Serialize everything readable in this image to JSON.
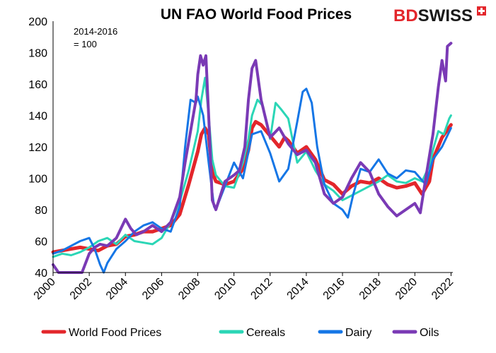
{
  "brand": {
    "part1": "BD",
    "part2": "SWISS",
    "color": "#e3262b"
  },
  "chart_data": {
    "type": "line",
    "title": "UN FAO World Food Prices",
    "note": [
      "2014-2016",
      "= 100"
    ],
    "xlabel": "",
    "ylabel": "",
    "xlim": [
      2000,
      2022.1
    ],
    "ylim": [
      40,
      200
    ],
    "y_ticks": [
      40,
      60,
      80,
      100,
      120,
      140,
      160,
      180,
      200
    ],
    "x_ticks": [
      2000,
      2002,
      2004,
      2006,
      2008,
      2010,
      2012,
      2014,
      2016,
      2018,
      2020,
      2022
    ],
    "grid": false,
    "legend_position": "bottom",
    "series": [
      {
        "name": "World Food Prices",
        "color": "#e3262b",
        "width": 5,
        "x": [
          2000,
          2000.5,
          2001,
          2001.5,
          2002,
          2002.5,
          2003,
          2003.5,
          2004,
          2004.5,
          2005,
          2005.5,
          2006,
          2006.5,
          2007,
          2007.5,
          2008,
          2008.2,
          2008.4,
          2008.6,
          2008.8,
          2009,
          2009.5,
          2010,
          2010.5,
          2010.8,
          2011,
          2011.2,
          2011.5,
          2012,
          2012.5,
          2012.8,
          2013,
          2013.5,
          2014,
          2014.5,
          2015,
          2015.5,
          2016,
          2016.5,
          2017,
          2017.5,
          2018,
          2018.5,
          2019,
          2019.5,
          2020,
          2020.4,
          2020.8,
          2021,
          2021.5,
          2022
        ],
        "y": [
          53,
          54,
          55,
          56,
          55,
          54,
          57,
          58,
          63,
          64,
          66,
          66,
          68,
          70,
          77,
          96,
          117,
          128,
          132,
          128,
          104,
          98,
          96,
          98,
          106,
          118,
          132,
          136,
          134,
          127,
          120,
          126,
          124,
          116,
          120,
          112,
          99,
          96,
          90,
          95,
          98,
          97,
          100,
          96,
          94,
          95,
          97,
          90,
          98,
          112,
          126,
          134
        ]
      },
      {
        "name": "Cereals",
        "color": "#2bd6b6",
        "width": 3,
        "x": [
          2000,
          2000.5,
          2001,
          2001.5,
          2002,
          2002.5,
          2003,
          2003.5,
          2004,
          2004.5,
          2005,
          2005.5,
          2006,
          2006.5,
          2007,
          2007.5,
          2008,
          2008.2,
          2008.4,
          2008.6,
          2008.8,
          2009,
          2009.5,
          2010,
          2010.5,
          2010.8,
          2011,
          2011.3,
          2011.6,
          2012,
          2012.3,
          2012.6,
          2013,
          2013.5,
          2014,
          2014.5,
          2015,
          2015.5,
          2016,
          2016.5,
          2017,
          2017.5,
          2018,
          2018.5,
          2019,
          2019.5,
          2020,
          2020.4,
          2020.8,
          2021,
          2021.3,
          2021.6,
          2021.9,
          2022
        ],
        "y": [
          50,
          52,
          51,
          53,
          56,
          60,
          62,
          58,
          64,
          60,
          59,
          58,
          62,
          72,
          85,
          105,
          130,
          150,
          164,
          140,
          112,
          102,
          95,
          94,
          110,
          125,
          140,
          150,
          146,
          125,
          148,
          144,
          138,
          110,
          117,
          105,
          96,
          92,
          86,
          89,
          92,
          95,
          98,
          102,
          98,
          97,
          100,
          98,
          108,
          118,
          130,
          128,
          138,
          140
        ]
      },
      {
        "name": "Dairy",
        "color": "#1576e6",
        "width": 3,
        "x": [
          2000,
          2000.5,
          2001,
          2001.5,
          2002,
          2002.3,
          2002.6,
          2002.8,
          2003,
          2003.5,
          2004,
          2004.5,
          2005,
          2005.5,
          2006,
          2006.5,
          2007,
          2007.3,
          2007.6,
          2007.9,
          2008,
          2008.3,
          2008.6,
          2008.9,
          2009,
          2009.5,
          2010,
          2010.5,
          2011,
          2011.5,
          2012,
          2012.5,
          2013,
          2013.5,
          2013.8,
          2014,
          2014.3,
          2014.6,
          2015,
          2015.5,
          2016,
          2016.3,
          2016.6,
          2017,
          2017.5,
          2018,
          2018.5,
          2019,
          2019.5,
          2020,
          2020.3,
          2020.6,
          2021,
          2021.5,
          2022
        ],
        "y": [
          52,
          54,
          57,
          60,
          62,
          55,
          45,
          40,
          46,
          55,
          60,
          66,
          70,
          72,
          68,
          66,
          82,
          120,
          150,
          148,
          152,
          140,
          110,
          82,
          80,
          95,
          110,
          100,
          128,
          130,
          116,
          98,
          106,
          136,
          155,
          157,
          148,
          120,
          96,
          84,
          80,
          75,
          90,
          106,
          104,
          112,
          103,
          100,
          105,
          104,
          100,
          96,
          112,
          120,
          132
        ]
      },
      {
        "name": "Oils",
        "color": "#7a3ab5",
        "width": 4,
        "x": [
          2000,
          2000.3,
          2000.6,
          2001,
          2001.3,
          2001.6,
          2002,
          2002.3,
          2002.6,
          2003,
          2003.5,
          2004,
          2004.3,
          2004.6,
          2005,
          2005.5,
          2006,
          2006.5,
          2007,
          2007.3,
          2007.6,
          2007.9,
          2008,
          2008.15,
          2008.3,
          2008.45,
          2008.6,
          2008.8,
          2009,
          2009.5,
          2010,
          2010.3,
          2010.6,
          2010.8,
          2011,
          2011.2,
          2011.5,
          2012,
          2012.5,
          2013,
          2013.5,
          2014,
          2014.5,
          2015,
          2015.5,
          2016,
          2016.5,
          2017,
          2017.5,
          2018,
          2018.5,
          2019,
          2019.5,
          2020,
          2020.3,
          2020.6,
          2021,
          2021.3,
          2021.5,
          2021.7,
          2021.8,
          2022
        ],
        "y": [
          45,
          40,
          38,
          34,
          32,
          40,
          52,
          56,
          58,
          57,
          62,
          74,
          68,
          64,
          66,
          70,
          66,
          72,
          88,
          110,
          130,
          150,
          166,
          178,
          172,
          178,
          140,
          86,
          80,
          98,
          102,
          105,
          120,
          150,
          170,
          175,
          150,
          126,
          132,
          122,
          115,
          118,
          110,
          90,
          84,
          88,
          100,
          110,
          104,
          90,
          82,
          76,
          80,
          84,
          78,
          100,
          128,
          158,
          175,
          162,
          184,
          186
        ]
      }
    ]
  }
}
